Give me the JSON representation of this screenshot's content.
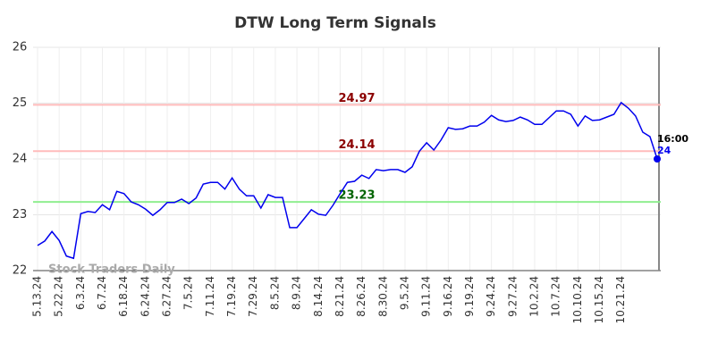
{
  "chart_data": {
    "type": "line",
    "title": "DTW Long Term Signals",
    "categories": [
      "5.13.24",
      null,
      null,
      "5.22.24",
      null,
      null,
      "6.3.24",
      null,
      null,
      "6.7.24",
      null,
      null,
      "6.18.24",
      null,
      null,
      "6.24.24",
      null,
      null,
      "6.27.24",
      null,
      null,
      "7.5.24",
      null,
      null,
      "7.11.24",
      null,
      null,
      "7.19.24",
      null,
      null,
      "7.29.24",
      null,
      null,
      "8.5.24",
      null,
      null,
      "8.9.24",
      null,
      null,
      "8.14.24",
      null,
      null,
      "8.21.24",
      null,
      null,
      "8.26.24",
      null,
      null,
      "8.30.24",
      null,
      null,
      "9.5.24",
      null,
      null,
      "9.11.24",
      null,
      null,
      "9.16.24",
      null,
      null,
      "9.19.24",
      null,
      null,
      "9.24.24",
      null,
      null,
      "9.27.24",
      null,
      null,
      "10.2.24",
      null,
      null,
      "10.7.24",
      null,
      null,
      "10.10.24",
      null,
      null,
      "10.15.24",
      null,
      null,
      "10.21.24",
      null,
      null,
      null,
      null,
      null
    ],
    "series": [
      {
        "name": "DTW",
        "color": "#0000ee",
        "values": [
          22.45,
          22.53,
          22.7,
          22.54,
          22.26,
          22.22,
          23.02,
          23.06,
          23.04,
          23.18,
          23.09,
          23.42,
          23.38,
          23.23,
          23.18,
          23.1,
          22.99,
          23.09,
          23.22,
          23.22,
          23.28,
          23.2,
          23.3,
          23.55,
          23.58,
          23.58,
          23.46,
          23.66,
          23.46,
          23.34,
          23.34,
          23.12,
          23.36,
          23.31,
          23.31,
          22.77,
          22.77,
          22.93,
          23.09,
          23.01,
          22.99,
          23.17,
          23.38,
          23.58,
          23.6,
          23.71,
          23.65,
          23.81,
          23.79,
          23.81,
          23.81,
          23.76,
          23.86,
          24.14,
          24.29,
          24.16,
          24.34,
          24.56,
          24.53,
          24.54,
          24.59,
          24.59,
          24.66,
          24.78,
          24.7,
          24.67,
          24.69,
          24.75,
          24.7,
          24.62,
          24.62,
          24.74,
          24.86,
          24.86,
          24.8,
          24.59,
          24.77,
          24.69,
          24.7,
          24.75,
          24.8,
          25.01,
          24.91,
          24.77,
          24.48,
          24.4,
          24
        ]
      }
    ],
    "ylim": [
      22,
      26
    ],
    "yticks": [
      22,
      23,
      24,
      25,
      26
    ],
    "grid": true,
    "levels": [
      {
        "value": 24.97,
        "color": "#ffbbbb",
        "label_color": "#8b0000"
      },
      {
        "value": 24.14,
        "color": "#ffbbbb",
        "label_color": "#8b0000"
      },
      {
        "value": 23.23,
        "color": "#90ee90",
        "label_color": "#006400"
      }
    ],
    "last_time": "16:00",
    "watermark": "Stock Traders Daily"
  }
}
